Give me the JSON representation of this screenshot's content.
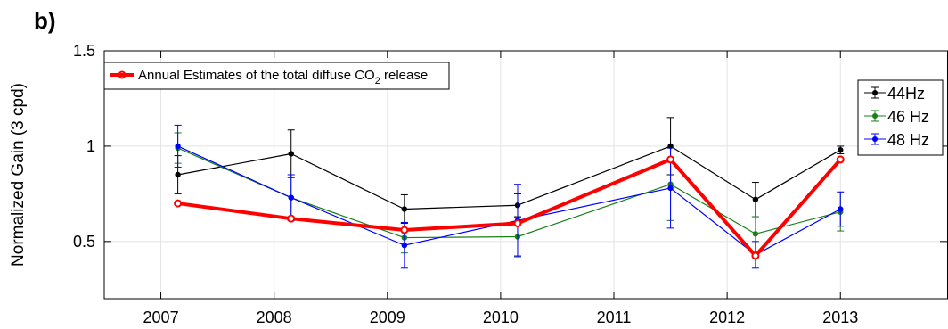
{
  "panel_label": "b)",
  "chart_data": {
    "type": "line",
    "ylabel": "Normalized  Gain (3 cpd)",
    "xlim": [
      2006.5,
      2013.95
    ],
    "ylim": [
      0.2,
      1.5
    ],
    "xticks": [
      2007,
      2008,
      2009,
      2010,
      2011,
      2012,
      2013
    ],
    "xtick_labels": [
      "2007",
      "2008",
      "2009",
      "2010",
      "2011",
      "2012",
      "2013"
    ],
    "yticks": [
      0.5,
      1,
      1.5
    ],
    "ytick_labels": [
      "0.5",
      "1",
      "1.5"
    ],
    "grid": true,
    "series": [
      {
        "name": "44Hz",
        "color": "#000000",
        "x": [
          2007.15,
          2008.15,
          2009.15,
          2010.15,
          2011.5,
          2012.25,
          2013.0
        ],
        "y": [
          0.85,
          0.96,
          0.67,
          0.69,
          1.0,
          0.72,
          0.98
        ],
        "err": [
          0.1,
          0.125,
          0.075,
          0.06,
          0.15,
          0.09,
          0.02
        ]
      },
      {
        "name": "46 Hz",
        "color": "#1a7f1a",
        "x": [
          2007.15,
          2008.15,
          2009.15,
          2010.15,
          2011.5,
          2012.25,
          2013.0
        ],
        "y": [
          0.99,
          0.73,
          0.52,
          0.525,
          0.8,
          0.54,
          0.655
        ],
        "err": [
          0.08,
          0.12,
          0.08,
          0.1,
          0.19,
          0.09,
          0.1
        ]
      },
      {
        "name": "48 Hz",
        "color": "#0000ff",
        "x": [
          2007.15,
          2008.15,
          2009.15,
          2010.15,
          2011.5,
          2012.25,
          2013.0
        ],
        "y": [
          1.0,
          0.73,
          0.48,
          0.61,
          0.78,
          0.43,
          0.67
        ],
        "err": [
          0.11,
          0.12,
          0.12,
          0.19,
          0.21,
          0.07,
          0.09
        ]
      },
      {
        "name": "Annual Estimates of the total diffuse CO",
        "name_subscript": "2",
        "name_suffix": " release",
        "color": "#ff0000",
        "x": [
          2007.15,
          2008.15,
          2009.15,
          2010.15,
          2011.5,
          2012.25,
          2013.0
        ],
        "y": [
          0.7,
          0.62,
          0.56,
          0.595,
          0.93,
          0.425,
          0.93
        ]
      }
    ]
  }
}
